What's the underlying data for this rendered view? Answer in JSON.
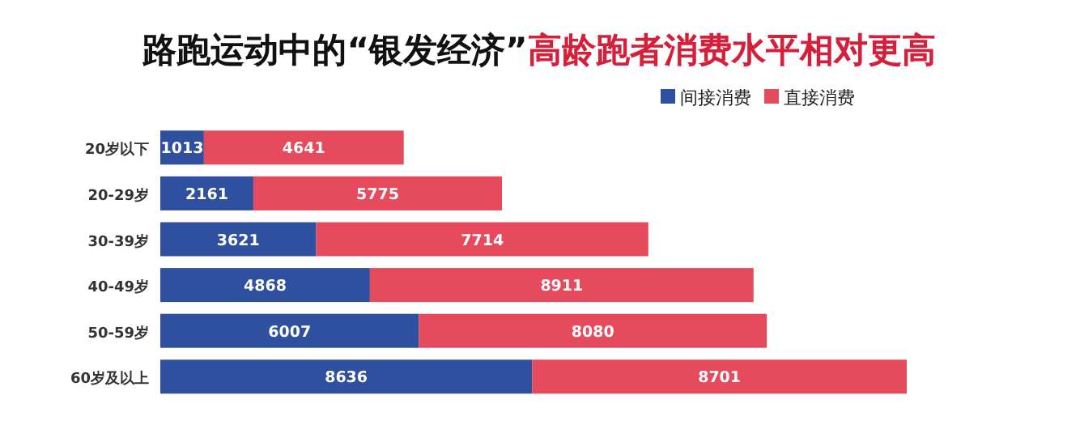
{
  "chart_data": {
    "type": "bar",
    "orientation": "horizontal",
    "stacked": true,
    "data_labels": true,
    "legend": "top right",
    "title": "路跑运动中的“银发经济”",
    "subtitle": "高龄跑者消费水平相对更高",
    "categories": [
      "20岁以下",
      "20-29岁",
      "30-39岁",
      "40-49岁",
      "50-59岁",
      "60岁及以上"
    ],
    "series": [
      {
        "name": "间接消费",
        "color": "#2f4f9f",
        "values": [
          1013,
          2161,
          3621,
          4868,
          6007,
          8636
        ]
      },
      {
        "name": "直接消费",
        "color": "#e64b5d",
        "values": [
          4641,
          5775,
          7714,
          8911,
          8080,
          8701
        ]
      }
    ]
  }
}
